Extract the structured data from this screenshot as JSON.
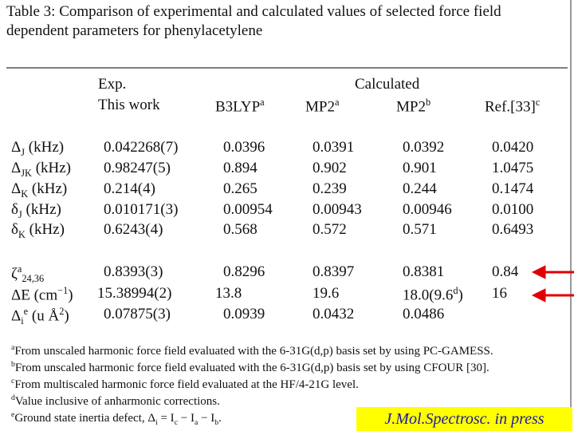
{
  "title": [
    "Table 3:  Comparison of experimental and calculated values of selected force field",
    "dependent parameters for phenylacetylene"
  ],
  "header": {
    "exp": [
      "Exp.",
      "This work"
    ],
    "calculated": "Calculated",
    "columns": [
      [
        "B3LYP",
        {
          "sup": "a"
        }
      ],
      [
        "MP2",
        {
          "sup": "a"
        }
      ],
      [
        "MP2",
        {
          "sup": "b"
        }
      ],
      [
        "Ref.[33]",
        {
          "sup": "c"
        }
      ]
    ]
  },
  "rows": [
    {
      "label": [
        "Δ",
        {
          "sub": "J"
        },
        " (kHz)"
      ],
      "cells": [
        "0.042268(7)",
        "0.0396",
        "0.0391",
        "0.0392",
        "0.0420"
      ]
    },
    {
      "label": [
        "Δ",
        {
          "sub": "JK"
        },
        " (kHz)"
      ],
      "cells": [
        "0.98247(5)",
        "0.894",
        "0.902",
        "0.901",
        "1.0475"
      ]
    },
    {
      "label": [
        "Δ",
        {
          "sub": "K"
        },
        " (kHz)"
      ],
      "cells": [
        "0.214(4)",
        "0.265",
        "0.239",
        "0.244",
        "0.1474"
      ]
    },
    {
      "label": [
        "δ",
        {
          "sub": "J"
        },
        " (kHz)"
      ],
      "cells": [
        "0.010171(3)",
        "0.00954",
        "0.00943",
        "0.00946",
        "0.0100"
      ]
    },
    {
      "label": [
        "δ",
        {
          "sub": "K"
        },
        " (kHz)"
      ],
      "cells": [
        "0.6243(4)",
        "0.568",
        "0.572",
        "0.571",
        "0.6493"
      ]
    },
    {
      "label": [
        "ζ",
        {
          "sup": "a"
        },
        {
          "sub": "24,36"
        }
      ],
      "cells": [
        "0.8393(3)",
        "0.8296",
        "0.8397",
        "0.8381",
        "0.84"
      ]
    },
    {
      "label": [
        "ΔE",
        " (cm",
        {
          "sup": "−1"
        },
        ")"
      ],
      "cells": [
        "15.38994(2)",
        "13.8",
        "19.6",
        [
          "18.0(9.6",
          {
            "sup": "d"
          },
          ")"
        ],
        "16"
      ]
    },
    {
      "label": [
        "Δ",
        {
          "sub": "i"
        },
        {
          "sup": "e"
        },
        " (u Å",
        {
          "sup": "2"
        },
        ")"
      ],
      "cells": [
        "0.07875(3)",
        "0.0939",
        "0.0432",
        "0.0486",
        ""
      ]
    }
  ],
  "footnotes": [
    [
      {
        "sup": "a"
      },
      "From unscaled harmonic force field evaluated with the 6-31G(d,p) basis set by using PC-GAMESS."
    ],
    [
      {
        "sup": "b"
      },
      "From unscaled harmonic force field evaluated with the 6-31G(d,p) basis set by using CFOUR [30]."
    ],
    [
      {
        "sup": "c"
      },
      "From multiscaled harmonic force field evaluated at the HF/4-21G level."
    ],
    [
      {
        "sup": "d"
      },
      "Value inclusive of anharmonic corrections."
    ],
    [
      {
        "sup": "e"
      },
      "Ground state inertia defect, Δ",
      {
        "sub": "i"
      },
      " = I",
      {
        "sub": "c"
      },
      " − I",
      {
        "sub": "a"
      },
      " − I",
      {
        "sub": "b"
      },
      "."
    ]
  ],
  "badge": "J.Mol.Spectrosc. in press"
}
